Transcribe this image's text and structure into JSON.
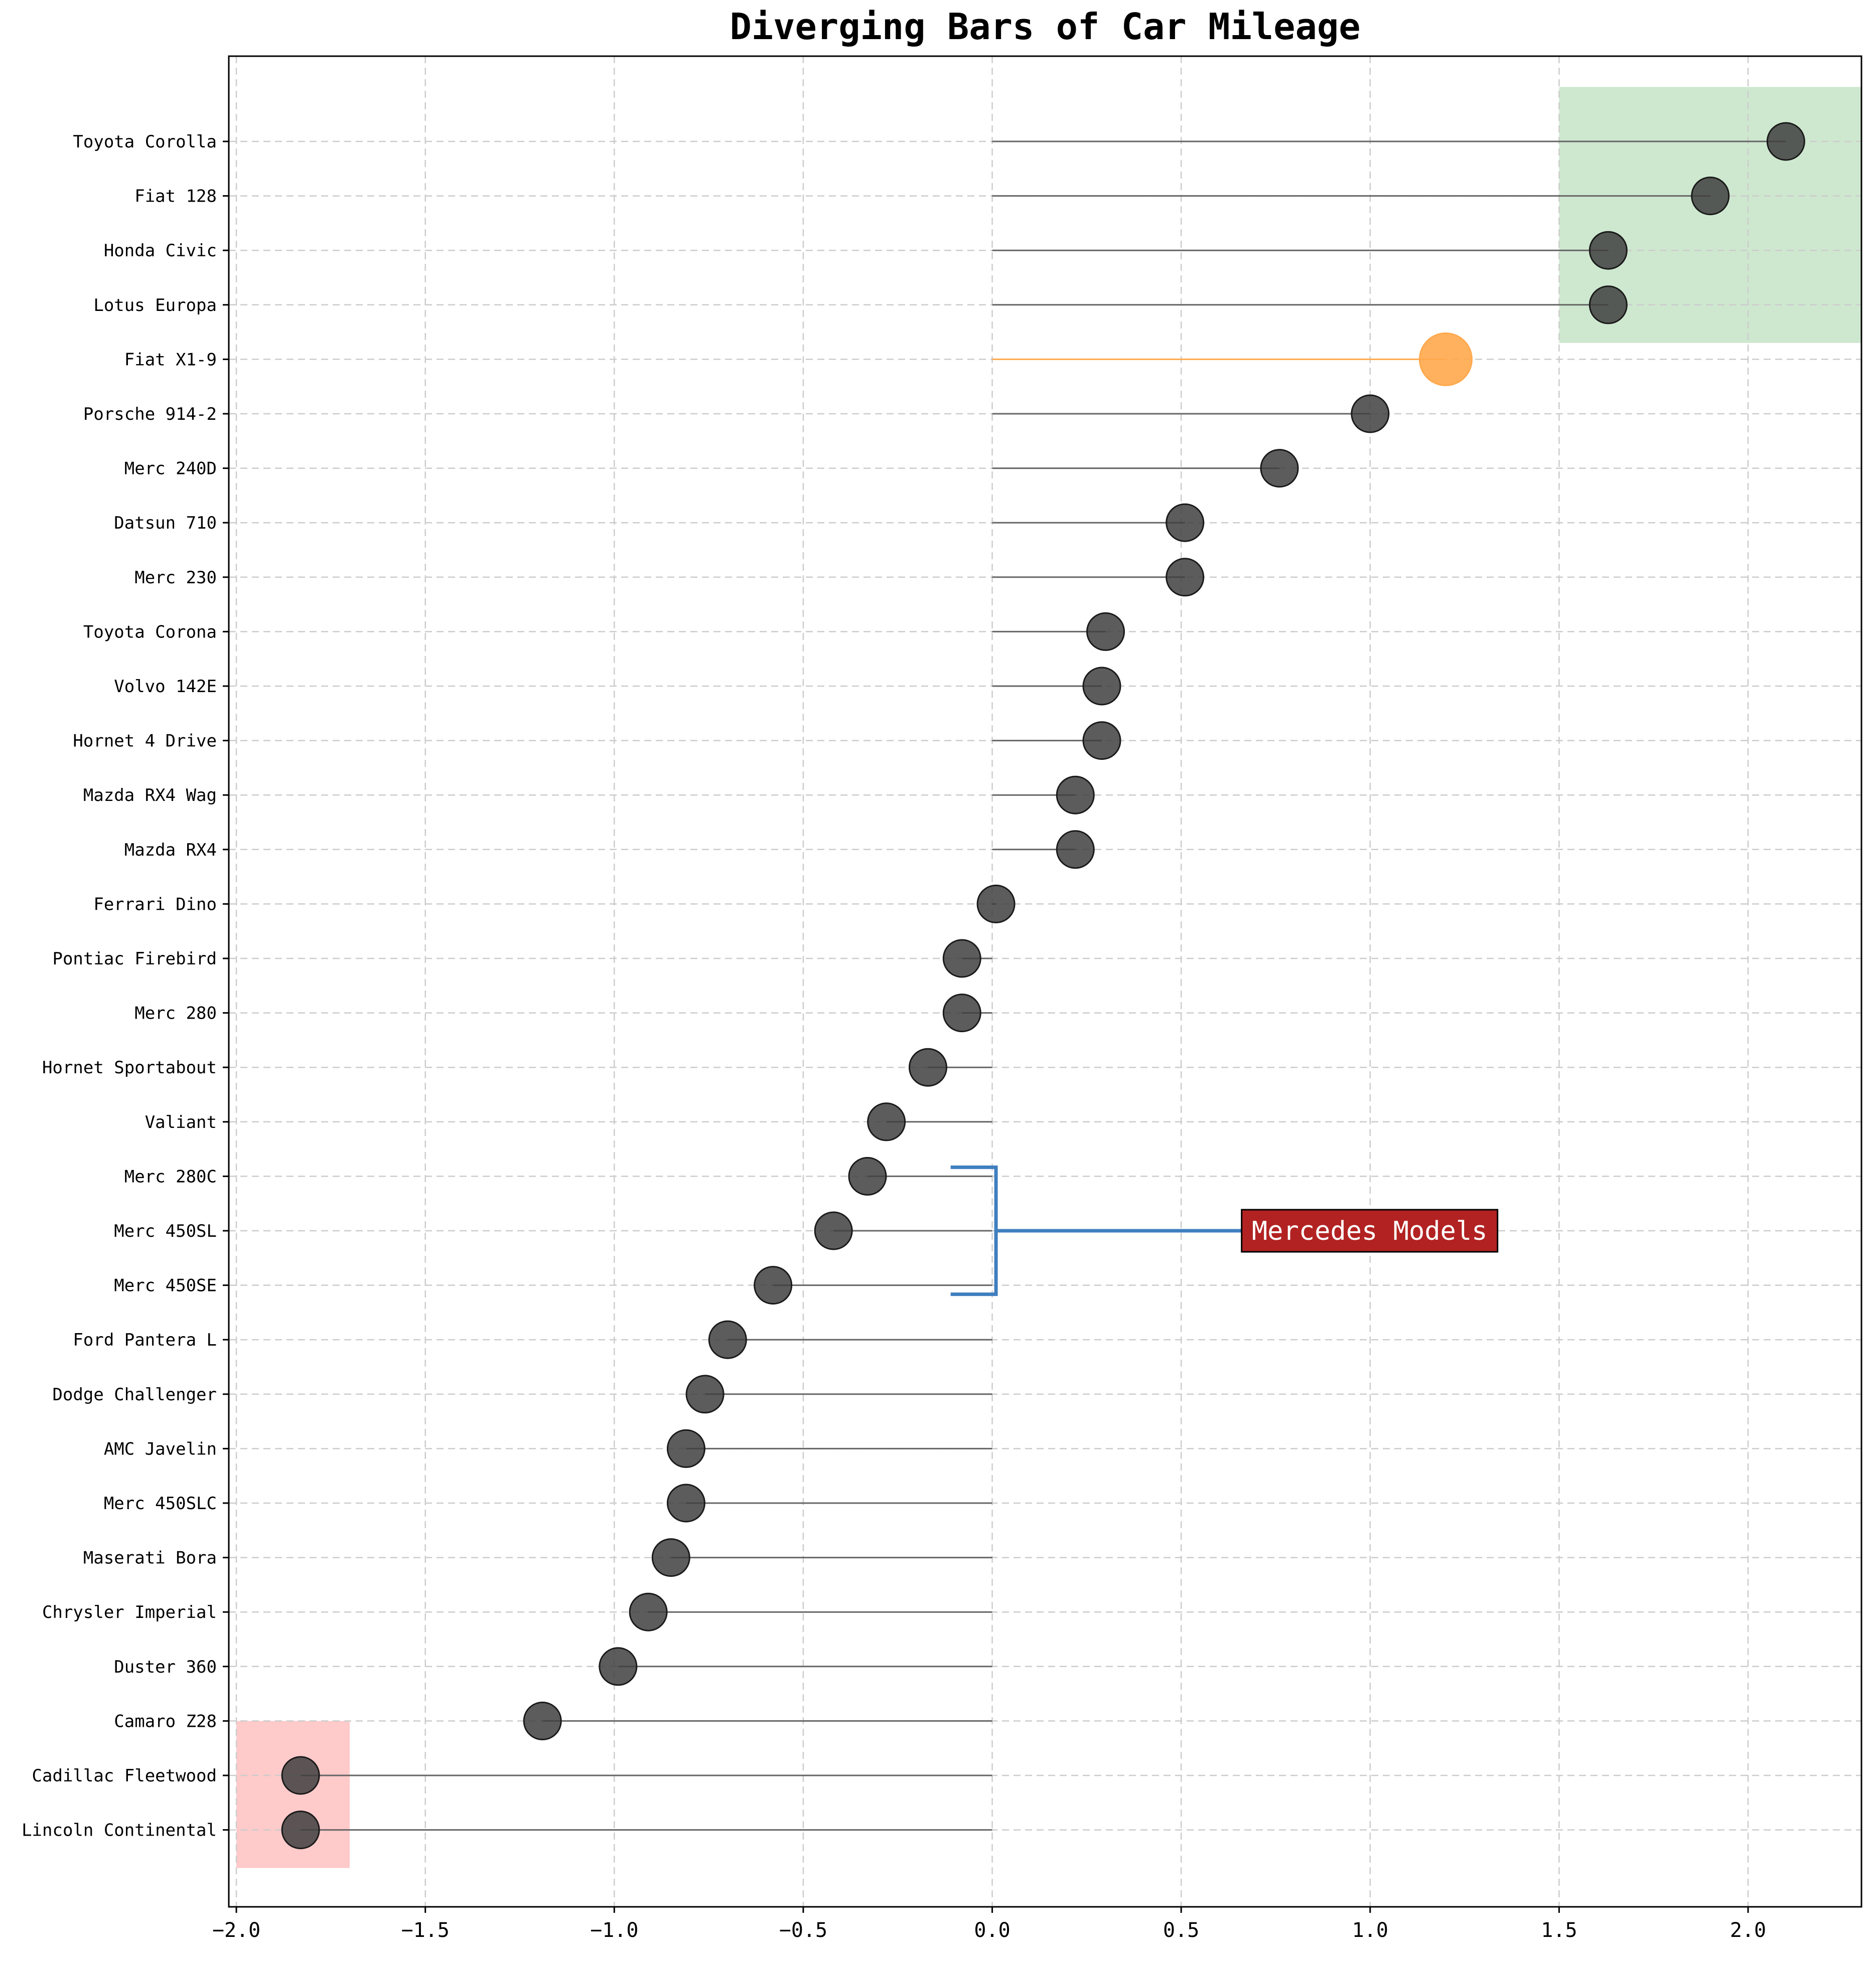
{
  "chart_data": {
    "type": "lollipop-diverging",
    "title": "Diverging Bars of Car Mileage",
    "xlabel": "",
    "ylabel": "",
    "xlim": [
      -2.02,
      2.3
    ],
    "xticks": [
      -2.0,
      -1.5,
      -1.0,
      -0.5,
      0.0,
      0.5,
      1.0,
      1.5,
      2.0
    ],
    "xtick_labels": [
      "−2.0",
      "−1.5",
      "−1.0",
      "−0.5",
      "0.0",
      "0.5",
      "1.0",
      "1.5",
      "2.0"
    ],
    "grid": true,
    "grid_style": "dashed",
    "categories": [
      "Lincoln Continental",
      "Cadillac Fleetwood",
      "Camaro Z28",
      "Duster 360",
      "Chrysler Imperial",
      "Maserati Bora",
      "Merc 450SLC",
      "AMC Javelin",
      "Dodge Challenger",
      "Ford Pantera L",
      "Merc 450SE",
      "Merc 450SL",
      "Merc 280C",
      "Valiant",
      "Hornet Sportabout",
      "Merc 280",
      "Pontiac Firebird",
      "Ferrari Dino",
      "Mazda RX4",
      "Mazda RX4 Wag",
      "Hornet 4 Drive",
      "Volvo 142E",
      "Toyota Corona",
      "Merc 230",
      "Datsun 710",
      "Merc 240D",
      "Porsche 914-2",
      "Fiat X1-9",
      "Lotus Europa",
      "Honda Civic",
      "Fiat 128",
      "Toyota Corolla"
    ],
    "values": [
      -1.83,
      -1.83,
      -1.19,
      -0.99,
      -0.91,
      -0.85,
      -0.81,
      -0.81,
      -0.76,
      -0.7,
      -0.58,
      -0.42,
      -0.33,
      -0.28,
      -0.17,
      -0.08,
      -0.08,
      0.01,
      0.22,
      0.22,
      0.29,
      0.29,
      0.3,
      0.51,
      0.51,
      0.76,
      1.0,
      1.2,
      1.63,
      1.63,
      1.9,
      2.1
    ],
    "highlight": {
      "category": "Fiat X1-9",
      "color": "#ffa94d"
    },
    "marker_color": "#404040",
    "stem_color": "#666666",
    "regions": [
      {
        "x": [
          1.5,
          2.3
        ],
        "y_categories": [
          "Lotus Europa",
          "Toyota Corolla"
        ],
        "color": "#a5d6a7"
      },
      {
        "x": [
          -2.0,
          -1.7
        ],
        "y_categories": [
          "Lincoln Continental",
          "Cadillac Fleetwood"
        ],
        "color": "#ff9e9e"
      }
    ],
    "annotation": {
      "text": "Mercedes Models",
      "target_categories": [
        "Merc 450SE",
        "Merc 450SL",
        "Merc 280C"
      ],
      "bracket_color": "#3f7fbf",
      "box_color": "#b22222",
      "text_color": "#ffffff"
    }
  }
}
